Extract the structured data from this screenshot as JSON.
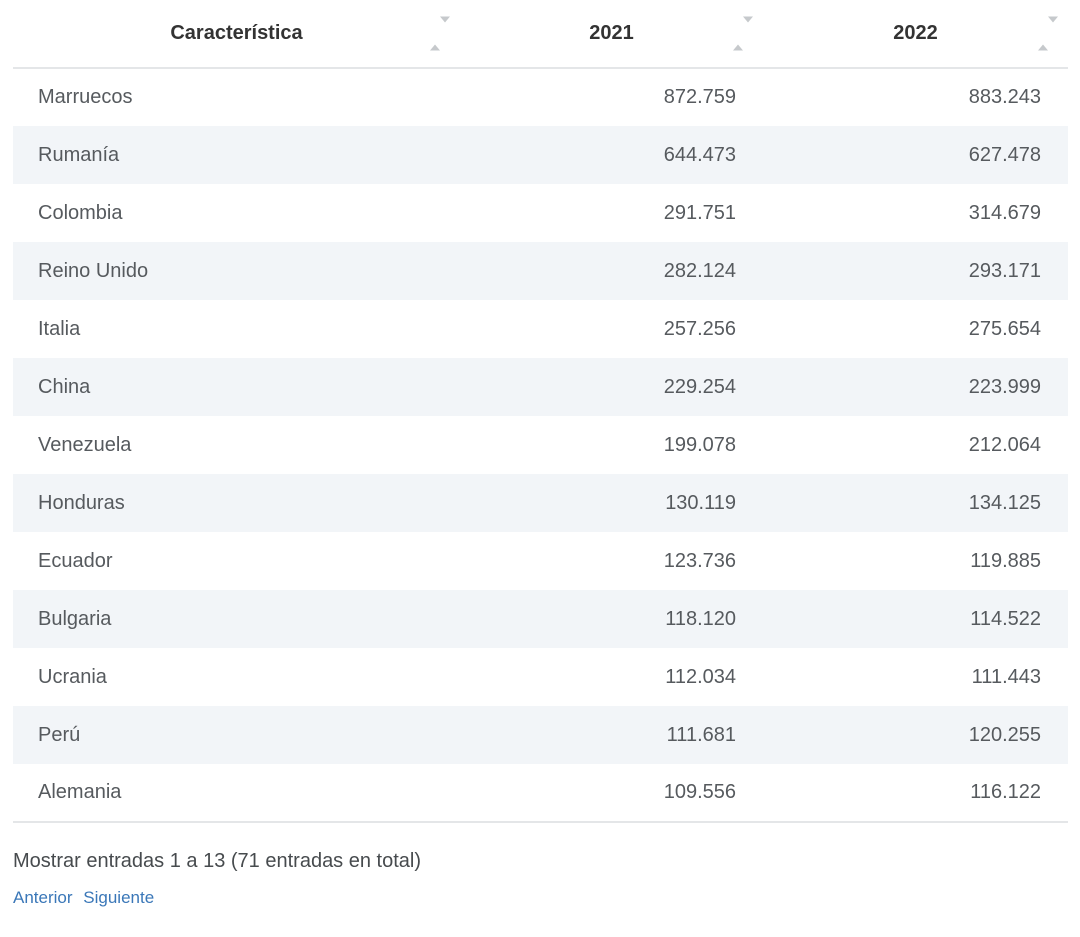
{
  "colors": {
    "stripe_row_bg": "#f2f5f8",
    "header_text": "#333333",
    "body_text": "#565a5e",
    "divider": "#e4e6e8",
    "link_blue": "#3a77b8",
    "sort_arrow": "#c6c9cc"
  },
  "table": {
    "columns": [
      {
        "label": "Característica"
      },
      {
        "label": "2021"
      },
      {
        "label": "2022"
      }
    ],
    "rows": [
      {
        "name": "Marruecos",
        "y2021": "872.759",
        "y2022": "883.243"
      },
      {
        "name": "Rumanía",
        "y2021": "644.473",
        "y2022": "627.478"
      },
      {
        "name": "Colombia",
        "y2021": "291.751",
        "y2022": "314.679"
      },
      {
        "name": "Reino Unido",
        "y2021": "282.124",
        "y2022": "293.171"
      },
      {
        "name": "Italia",
        "y2021": "257.256",
        "y2022": "275.654"
      },
      {
        "name": "China",
        "y2021": "229.254",
        "y2022": "223.999"
      },
      {
        "name": "Venezuela",
        "y2021": "199.078",
        "y2022": "212.064"
      },
      {
        "name": "Honduras",
        "y2021": "130.119",
        "y2022": "134.125"
      },
      {
        "name": "Ecuador",
        "y2021": "123.736",
        "y2022": "119.885"
      },
      {
        "name": "Bulgaria",
        "y2021": "118.120",
        "y2022": "114.522"
      },
      {
        "name": "Ucrania",
        "y2021": "112.034",
        "y2022": "111.443"
      },
      {
        "name": "Perú",
        "y2021": "111.681",
        "y2022": "120.255"
      },
      {
        "name": "Alemania",
        "y2021": "109.556",
        "y2022": "116.122"
      }
    ]
  },
  "footer": {
    "summary": "Mostrar entradas 1 a 13 (71 entradas en total)",
    "pagination": {
      "previous_label": "Anterior",
      "next_label": "Siguiente"
    }
  }
}
